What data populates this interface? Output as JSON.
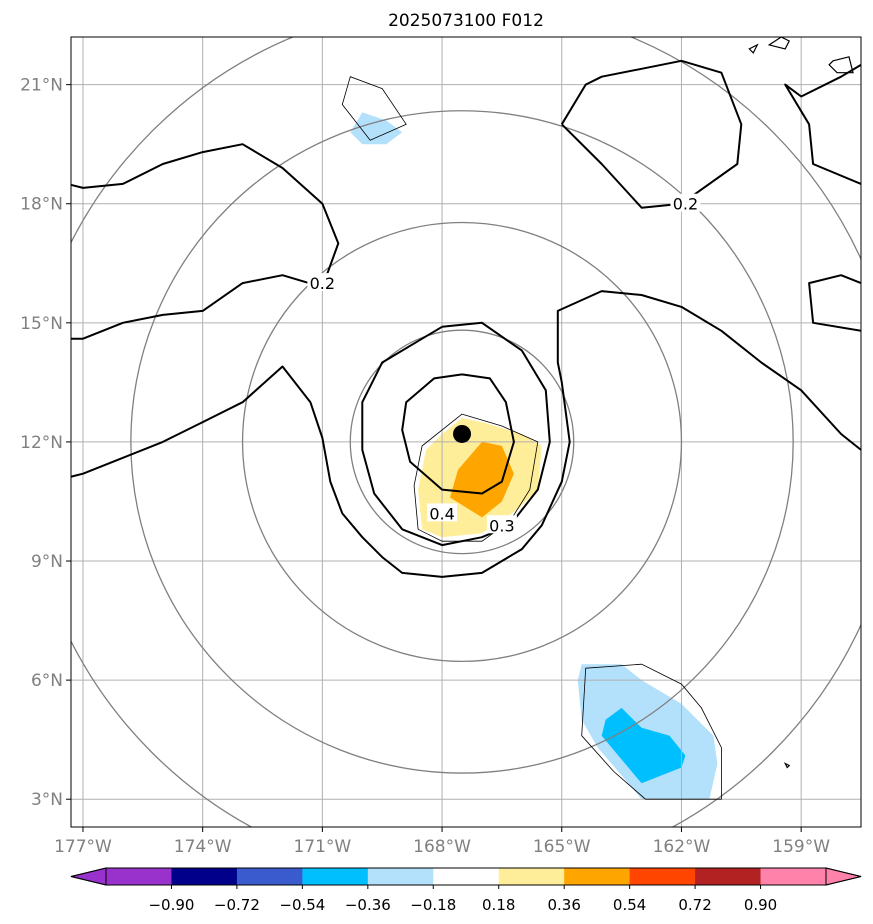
{
  "chart_data": {
    "type": "contour-map",
    "title": "2025073100 F012",
    "projection": "lat-lon",
    "xlim": [
      -177.3,
      -157.5
    ],
    "ylim": [
      2.3,
      22.2
    ],
    "x_ticks": [
      -177,
      -174,
      -171,
      -168,
      -165,
      -162,
      -159
    ],
    "x_tick_labels": [
      "177°W",
      "174°W",
      "171°W",
      "168°W",
      "165°W",
      "162°W",
      "159°W"
    ],
    "y_ticks": [
      3,
      6,
      9,
      12,
      15,
      18,
      21
    ],
    "y_tick_labels": [
      "3°N",
      "6°N",
      "9°N",
      "12°N",
      "15°N",
      "18°N",
      "21°N"
    ],
    "grid": true,
    "center_marker": {
      "lon": -167.5,
      "lat": 12.2
    },
    "range_rings": {
      "center": {
        "lon": -167.5,
        "lat": 12.0
      },
      "radii_deg": [
        2.8,
        5.5,
        8.3,
        11.0
      ]
    },
    "contour_labels": [
      {
        "text": "0.2",
        "lon": -171.0,
        "lat": 16.0
      },
      {
        "text": "0.2",
        "lon": -161.9,
        "lat": 18.0
      },
      {
        "text": "0.4",
        "lon": -168.0,
        "lat": 10.2
      },
      {
        "text": "0.3",
        "lon": -166.5,
        "lat": 9.9
      }
    ],
    "contour_lines": [
      {
        "level": 0.2,
        "points": [
          [
            -177.4,
            18.5
          ],
          [
            -177,
            18.4
          ],
          [
            -176,
            18.5
          ],
          [
            -175,
            19
          ],
          [
            -174,
            19.3
          ],
          [
            -173,
            19.5
          ],
          [
            -172,
            18.9
          ],
          [
            -171,
            18
          ],
          [
            -170.6,
            17
          ],
          [
            -171,
            15.9
          ],
          [
            -172,
            16.2
          ],
          [
            -173,
            16
          ],
          [
            -174,
            15.3
          ],
          [
            -175,
            15.2
          ],
          [
            -176,
            15
          ],
          [
            -177,
            14.6
          ],
          [
            -177.4,
            14.6
          ]
        ]
      },
      {
        "level": 0.2,
        "points": [
          [
            -177.4,
            11.1
          ],
          [
            -177,
            11.2
          ],
          [
            -176,
            11.6
          ],
          [
            -175,
            12
          ],
          [
            -174,
            12.5
          ],
          [
            -173,
            13
          ],
          [
            -172,
            13.9
          ],
          [
            -171.3,
            13
          ],
          [
            -171,
            12.1
          ],
          [
            -170.8,
            11
          ],
          [
            -170.5,
            10.2
          ],
          [
            -170,
            9.6
          ],
          [
            -169.5,
            9.1
          ],
          [
            -169,
            8.7
          ],
          [
            -168,
            8.6
          ],
          [
            -167,
            8.7
          ],
          [
            -166,
            9.3
          ],
          [
            -165.5,
            9.9
          ],
          [
            -165,
            11
          ],
          [
            -164.8,
            12
          ],
          [
            -165,
            13.5
          ],
          [
            -165.1,
            14
          ],
          [
            -165.1,
            15.3
          ],
          [
            -164,
            15.8
          ],
          [
            -163,
            15.7
          ],
          [
            -162,
            15.4
          ],
          [
            -161,
            14.8
          ],
          [
            -160,
            14
          ],
          [
            -159,
            13.3
          ],
          [
            -158,
            12.2
          ],
          [
            -157.5,
            11.8
          ]
        ]
      },
      {
        "level": 0.2,
        "points": [
          [
            -165,
            20
          ],
          [
            -164.4,
            21
          ],
          [
            -164,
            21.2
          ],
          [
            -163,
            21.4
          ],
          [
            -162,
            21.6
          ],
          [
            -161,
            21.3
          ],
          [
            -160.5,
            20
          ],
          [
            -160.6,
            19
          ],
          [
            -162,
            18
          ],
          [
            -163,
            17.9
          ],
          [
            -164,
            19
          ],
          [
            -165,
            20
          ]
        ]
      },
      {
        "level": 0.2,
        "points": [
          [
            -157.5,
            21.5
          ],
          [
            -158,
            21.2
          ],
          [
            -159,
            20.7
          ],
          [
            -159.4,
            21
          ],
          [
            -158.8,
            20
          ],
          [
            -158.7,
            19
          ],
          [
            -157.5,
            18.5
          ]
        ]
      },
      {
        "level": 0.2,
        "points": [
          [
            -157.5,
            16
          ],
          [
            -158,
            16.2
          ],
          [
            -158.8,
            16
          ],
          [
            -158.7,
            15
          ],
          [
            -157.5,
            14.8
          ]
        ]
      },
      {
        "level": 0.3,
        "points": [
          [
            -168,
            14.9
          ],
          [
            -167,
            15
          ],
          [
            -166,
            14.3
          ],
          [
            -165.4,
            13.3
          ],
          [
            -165.3,
            12
          ],
          [
            -165.6,
            10.8
          ],
          [
            -166.3,
            9.9
          ],
          [
            -167,
            9.6
          ],
          [
            -168,
            9.4
          ],
          [
            -169,
            9.8
          ],
          [
            -169.7,
            10.7
          ],
          [
            -170,
            11.8
          ],
          [
            -170,
            13
          ],
          [
            -169.5,
            14
          ],
          [
            -168.5,
            14.6
          ],
          [
            -168,
            14.9
          ]
        ]
      },
      {
        "level": 0.4,
        "points": [
          [
            -167.5,
            13.7
          ],
          [
            -166.8,
            13.6
          ],
          [
            -166.4,
            13
          ],
          [
            -166.2,
            12
          ],
          [
            -166.5,
            11
          ],
          [
            -167,
            10.7
          ],
          [
            -168,
            10.8
          ],
          [
            -168.8,
            11.5
          ],
          [
            -169,
            12.3
          ],
          [
            -168.9,
            13
          ],
          [
            -168.2,
            13.6
          ],
          [
            -167.5,
            13.7
          ]
        ]
      }
    ],
    "filled_regions": [
      {
        "bin": "0.18–0.36",
        "color": "#ffee99",
        "points": [
          [
            -167.5,
            12.6
          ],
          [
            -167,
            12.5
          ],
          [
            -166,
            12.2
          ],
          [
            -165.5,
            11.9
          ],
          [
            -165.6,
            10.8
          ],
          [
            -166.1,
            10.3
          ],
          [
            -167,
            9.7
          ],
          [
            -168,
            9.6
          ],
          [
            -168.5,
            9.8
          ],
          [
            -168.6,
            10.8
          ],
          [
            -168.4,
            11.8
          ],
          [
            -168,
            12.2
          ],
          [
            -167.5,
            12.6
          ]
        ]
      },
      {
        "bin": "0.36–0.54",
        "color": "#ffa500",
        "points": [
          [
            -167,
            12
          ],
          [
            -166.5,
            11.9
          ],
          [
            -166.2,
            11.2
          ],
          [
            -166.5,
            10.5
          ],
          [
            -167,
            10.1
          ],
          [
            -167.8,
            10.6
          ],
          [
            -167.6,
            11.3
          ],
          [
            -167,
            12
          ]
        ]
      },
      {
        "bin": "-0.36–-0.18",
        "color": "#b3e0fb",
        "points": [
          [
            -170.3,
            19.8
          ],
          [
            -170,
            20.3
          ],
          [
            -169.4,
            20.1
          ],
          [
            -169,
            19.8
          ],
          [
            -169.4,
            19.5
          ],
          [
            -170,
            19.5
          ],
          [
            -170.3,
            19.8
          ]
        ]
      },
      {
        "bin": "-0.36–-0.18",
        "color": "#b3e0fb",
        "points": [
          [
            -164.5,
            6.4
          ],
          [
            -163.5,
            6.4
          ],
          [
            -163,
            6
          ],
          [
            -162,
            5.4
          ],
          [
            -161.2,
            4.6
          ],
          [
            -161.1,
            3.9
          ],
          [
            -161.3,
            3
          ],
          [
            -162,
            3
          ],
          [
            -163,
            3
          ],
          [
            -163.5,
            3.6
          ],
          [
            -164.1,
            4.3
          ],
          [
            -164.5,
            5
          ],
          [
            -164.6,
            6
          ],
          [
            -164.5,
            6.4
          ]
        ]
      },
      {
        "bin": "-0.54–-0.36",
        "color": "#00bfff",
        "points": [
          [
            -163.9,
            5
          ],
          [
            -163.5,
            5.3
          ],
          [
            -163,
            4.8
          ],
          [
            -162.3,
            4.6
          ],
          [
            -161.9,
            4.1
          ],
          [
            -162,
            3.8
          ],
          [
            -162.5,
            3.6
          ],
          [
            -163,
            3.4
          ],
          [
            -163.5,
            4
          ],
          [
            -164,
            4.6
          ],
          [
            -163.9,
            5
          ]
        ]
      }
    ],
    "thin_outlines": [
      {
        "points": [
          [
            -167.5,
            12.7
          ],
          [
            -166.5,
            12.4
          ],
          [
            -165.6,
            12
          ],
          [
            -165.8,
            10.8
          ],
          [
            -166.3,
            10
          ],
          [
            -167,
            9.5
          ],
          [
            -168,
            9.5
          ],
          [
            -168.6,
            9.8
          ],
          [
            -168.7,
            10.9
          ],
          [
            -168.5,
            11.9
          ],
          [
            -167.5,
            12.7
          ]
        ]
      },
      {
        "points": [
          [
            -170.5,
            20.5
          ],
          [
            -170.3,
            21.2
          ],
          [
            -169.5,
            20.9
          ],
          [
            -168.9,
            20
          ],
          [
            -169.8,
            19.6
          ],
          [
            -170.5,
            20.5
          ]
        ]
      },
      {
        "points": [
          [
            -164.4,
            6.3
          ],
          [
            -163,
            6.4
          ],
          [
            -162,
            5.9
          ],
          [
            -161.5,
            5.3
          ],
          [
            -161,
            4.3
          ],
          [
            -161,
            3
          ],
          [
            -162.9,
            3
          ],
          [
            -163.7,
            3.7
          ],
          [
            -164.5,
            4.6
          ],
          [
            -164.4,
            6.3
          ]
        ]
      }
    ],
    "coastlines": [
      {
        "points": [
          [
            -159.8,
            22
          ],
          [
            -159.5,
            22.2
          ],
          [
            -159.3,
            22.1
          ],
          [
            -159.4,
            21.9
          ],
          [
            -159.8,
            22
          ]
        ]
      },
      {
        "points": [
          [
            -158.2,
            21.6
          ],
          [
            -157.8,
            21.7
          ],
          [
            -157.7,
            21.3
          ],
          [
            -158.1,
            21.3
          ],
          [
            -158.3,
            21.5
          ],
          [
            -158.2,
            21.6
          ]
        ]
      },
      {
        "points": [
          [
            -160.3,
            21.9
          ],
          [
            -160.1,
            22
          ],
          [
            -160.2,
            21.8
          ],
          [
            -160.3,
            21.9
          ]
        ]
      },
      {
        "points": [
          [
            -159.4,
            3.9
          ],
          [
            -159.3,
            3.85
          ],
          [
            -159.35,
            3.8
          ],
          [
            -159.4,
            3.9
          ]
        ]
      }
    ],
    "colorbar": {
      "extend": "both",
      "tick_labels": [
        "−0.90",
        "−0.72",
        "−0.54",
        "−0.36",
        "−0.18",
        "0.18",
        "0.36",
        "0.54",
        "0.72",
        "0.90"
      ],
      "low_extend_color": "#9932cc",
      "bin_colors": [
        "#9932cc",
        "#00008b",
        "#3a5bcd",
        "#00bfff",
        "#b3e0fb",
        "#ffffff",
        "#ffee99",
        "#ffa500",
        "#ff4500",
        "#b22222",
        "#ff82ab"
      ],
      "high_extend_color": "#ff82ab"
    }
  }
}
